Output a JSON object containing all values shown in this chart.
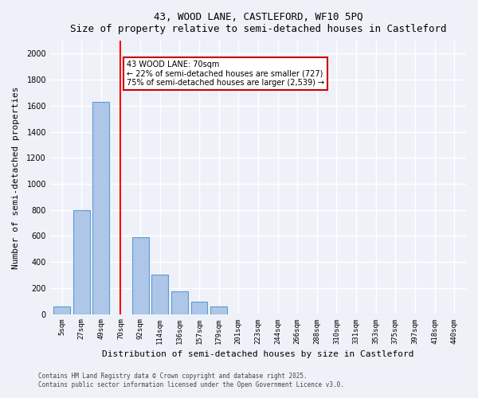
{
  "title1": "43, WOOD LANE, CASTLEFORD, WF10 5PQ",
  "title2": "Size of property relative to semi-detached houses in Castleford",
  "xlabel": "Distribution of semi-detached houses by size in Castleford",
  "ylabel": "Number of semi-detached properties",
  "categories": [
    "5sqm",
    "27sqm",
    "49sqm",
    "70sqm",
    "92sqm",
    "114sqm",
    "136sqm",
    "157sqm",
    "179sqm",
    "201sqm",
    "223sqm",
    "244sqm",
    "266sqm",
    "288sqm",
    "310sqm",
    "331sqm",
    "353sqm",
    "375sqm",
    "397sqm",
    "418sqm",
    "440sqm"
  ],
  "values": [
    60,
    800,
    1630,
    0,
    590,
    300,
    175,
    95,
    60,
    0,
    0,
    0,
    0,
    0,
    0,
    0,
    0,
    0,
    0,
    0,
    0
  ],
  "bar_color": "#aec6e8",
  "bar_edge_color": "#5b9bd5",
  "red_line_index": 3,
  "red_line_label": "43 WOOD LANE: 70sqm",
  "annotation_text": "43 WOOD LANE: 70sqm\n← 22% of semi-detached houses are smaller (727)\n75% of semi-detached houses are larger (2,539) →",
  "ylim": [
    0,
    2100
  ],
  "yticks": [
    0,
    200,
    400,
    600,
    800,
    1000,
    1200,
    1400,
    1600,
    1800,
    2000
  ],
  "footer1": "Contains HM Land Registry data © Crown copyright and database right 2025.",
  "footer2": "Contains public sector information licensed under the Open Government Licence v3.0.",
  "bg_color": "#eef2f8",
  "grid_color": "#ffffff",
  "annotation_box_color": "#ffffff",
  "annotation_box_edge": "#cc0000"
}
